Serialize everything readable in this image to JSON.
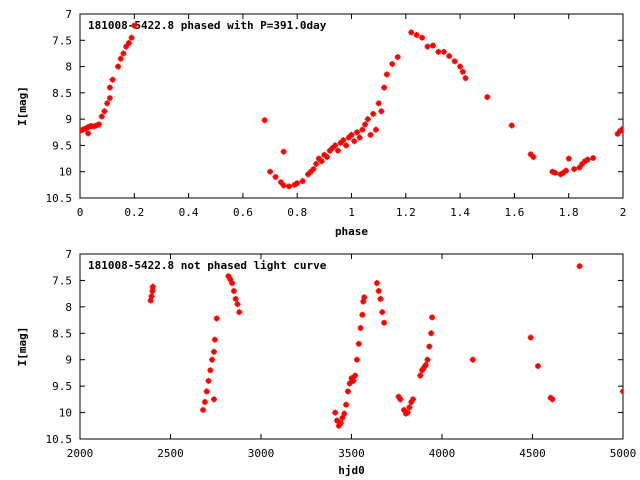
{
  "chart_data": [
    {
      "type": "scatter",
      "title": "181008-5422.8 phased with P=391.0day",
      "xlabel": "phase",
      "ylabel": "I[mag]",
      "xlim": [
        0,
        2
      ],
      "ylim": [
        10.5,
        7
      ],
      "y_inverted": true,
      "xticks": [
        "0",
        "0.2",
        "0.4",
        "0.6",
        "0.8",
        "1",
        "1.2",
        "1.4",
        "1.6",
        "1.8",
        "2"
      ],
      "yticks": [
        "7",
        "7.5",
        "8",
        "8.5",
        "9",
        "9.5",
        "10",
        "10.5"
      ],
      "marker_color": "#ff0000",
      "series": [
        {
          "points": [
            [
              0.0,
              9.22
            ],
            [
              0.01,
              9.2
            ],
            [
              0.02,
              9.18
            ],
            [
              0.03,
              9.27
            ],
            [
              0.03,
              9.15
            ],
            [
              0.04,
              9.13
            ],
            [
              0.05,
              9.14
            ],
            [
              0.06,
              9.12
            ],
            [
              0.07,
              9.1
            ],
            [
              0.08,
              8.95
            ],
            [
              0.09,
              8.85
            ],
            [
              0.1,
              8.7
            ],
            [
              0.11,
              8.6
            ],
            [
              0.11,
              8.4
            ],
            [
              0.12,
              8.25
            ],
            [
              0.14,
              8.0
            ],
            [
              0.15,
              7.85
            ],
            [
              0.16,
              7.75
            ],
            [
              0.17,
              7.62
            ],
            [
              0.18,
              7.55
            ],
            [
              0.19,
              7.45
            ],
            [
              0.2,
              7.22
            ],
            [
              0.68,
              9.02
            ],
            [
              0.7,
              10.0
            ],
            [
              0.72,
              10.1
            ],
            [
              0.74,
              10.2
            ],
            [
              0.75,
              10.26
            ],
            [
              0.75,
              9.62
            ],
            [
              0.77,
              10.28
            ],
            [
              0.79,
              10.25
            ],
            [
              0.8,
              10.22
            ],
            [
              0.82,
              10.18
            ],
            [
              0.84,
              10.05
            ],
            [
              0.85,
              10.0
            ],
            [
              0.86,
              9.95
            ],
            [
              0.87,
              9.85
            ],
            [
              0.88,
              9.75
            ],
            [
              0.89,
              9.8
            ],
            [
              0.9,
              9.68
            ],
            [
              0.91,
              9.72
            ],
            [
              0.92,
              9.6
            ],
            [
              0.93,
              9.55
            ],
            [
              0.94,
              9.5
            ],
            [
              0.95,
              9.6
            ],
            [
              0.96,
              9.45
            ],
            [
              0.97,
              9.4
            ],
            [
              0.98,
              9.5
            ],
            [
              0.99,
              9.35
            ],
            [
              1.0,
              9.3
            ],
            [
              1.01,
              9.42
            ],
            [
              1.02,
              9.25
            ],
            [
              1.03,
              9.35
            ],
            [
              1.04,
              9.2
            ],
            [
              1.05,
              9.1
            ],
            [
              1.06,
              9.0
            ],
            [
              1.07,
              9.3
            ],
            [
              1.08,
              8.9
            ],
            [
              1.09,
              9.2
            ],
            [
              1.1,
              8.7
            ],
            [
              1.11,
              8.85
            ],
            [
              1.12,
              8.4
            ],
            [
              1.13,
              8.15
            ],
            [
              1.15,
              7.95
            ],
            [
              1.17,
              7.82
            ],
            [
              1.22,
              7.35
            ],
            [
              1.24,
              7.4
            ],
            [
              1.26,
              7.45
            ],
            [
              1.28,
              7.62
            ],
            [
              1.3,
              7.6
            ],
            [
              1.32,
              7.72
            ],
            [
              1.34,
              7.72
            ],
            [
              1.36,
              7.8
            ],
            [
              1.38,
              7.9
            ],
            [
              1.4,
              8.0
            ],
            [
              1.41,
              8.1
            ],
            [
              1.42,
              8.22
            ],
            [
              1.5,
              8.58
            ],
            [
              1.59,
              9.12
            ],
            [
              1.66,
              9.67
            ],
            [
              1.67,
              9.72
            ],
            [
              1.74,
              10.0
            ],
            [
              1.75,
              10.02
            ],
            [
              1.77,
              10.05
            ],
            [
              1.78,
              10.02
            ],
            [
              1.79,
              9.98
            ],
            [
              1.8,
              9.75
            ],
            [
              1.82,
              9.95
            ],
            [
              1.84,
              9.92
            ],
            [
              1.85,
              9.85
            ],
            [
              1.86,
              9.8
            ],
            [
              1.87,
              9.77
            ],
            [
              1.89,
              9.74
            ],
            [
              1.98,
              9.28
            ],
            [
              1.99,
              9.22
            ],
            [
              2.0,
              9.18
            ]
          ]
        }
      ]
    },
    {
      "type": "scatter",
      "title": "181008-5422.8 not phased light curve",
      "xlabel": "hjd0",
      "ylabel": "I[mag]",
      "xlim": [
        2000,
        5000
      ],
      "ylim": [
        10.5,
        7
      ],
      "y_inverted": true,
      "xticks": [
        "2000",
        "2500",
        "3000",
        "3500",
        "4000",
        "4500",
        "5000"
      ],
      "yticks": [
        "7",
        "7.5",
        "8",
        "8.5",
        "9",
        "9.5",
        "10",
        "10.5"
      ],
      "marker_color": "#ff0000",
      "series": [
        {
          "points": [
            [
              2390,
              7.88
            ],
            [
              2395,
              7.8
            ],
            [
              2400,
              7.7
            ],
            [
              2402,
              7.62
            ],
            [
              2680,
              9.95
            ],
            [
              2690,
              9.8
            ],
            [
              2700,
              9.6
            ],
            [
              2710,
              9.4
            ],
            [
              2720,
              9.2
            ],
            [
              2730,
              9.0
            ],
            [
              2740,
              8.85
            ],
            [
              2745,
              8.62
            ],
            [
              2755,
              8.22
            ],
            [
              2740,
              9.75
            ],
            [
              2820,
              7.42
            ],
            [
              2830,
              7.48
            ],
            [
              2840,
              7.55
            ],
            [
              2850,
              7.7
            ],
            [
              2860,
              7.85
            ],
            [
              2870,
              7.95
            ],
            [
              2880,
              8.1
            ],
            [
              3410,
              10.0
            ],
            [
              3420,
              10.15
            ],
            [
              3430,
              10.25
            ],
            [
              3440,
              10.2
            ],
            [
              3450,
              10.1
            ],
            [
              3460,
              10.02
            ],
            [
              3470,
              9.85
            ],
            [
              3480,
              9.6
            ],
            [
              3490,
              9.45
            ],
            [
              3500,
              9.35
            ],
            [
              3510,
              9.4
            ],
            [
              3520,
              9.3
            ],
            [
              3530,
              9.0
            ],
            [
              3540,
              8.7
            ],
            [
              3550,
              8.4
            ],
            [
              3560,
              8.15
            ],
            [
              3565,
              7.9
            ],
            [
              3570,
              7.82
            ],
            [
              3640,
              7.55
            ],
            [
              3650,
              7.7
            ],
            [
              3660,
              7.85
            ],
            [
              3670,
              8.1
            ],
            [
              3680,
              8.3
            ],
            [
              3760,
              9.7
            ],
            [
              3770,
              9.75
            ],
            [
              3790,
              9.95
            ],
            [
              3800,
              10.02
            ],
            [
              3810,
              10.0
            ],
            [
              3820,
              9.9
            ],
            [
              3830,
              9.8
            ],
            [
              3840,
              9.75
            ],
            [
              3880,
              9.3
            ],
            [
              3890,
              9.2
            ],
            [
              3900,
              9.15
            ],
            [
              3910,
              9.1
            ],
            [
              3920,
              9.0
            ],
            [
              3930,
              8.75
            ],
            [
              3940,
              8.5
            ],
            [
              3945,
              8.2
            ],
            [
              4170,
              9.0
            ],
            [
              4490,
              8.58
            ],
            [
              4530,
              9.12
            ],
            [
              4600,
              9.72
            ],
            [
              4610,
              9.75
            ],
            [
              4760,
              7.23
            ],
            [
              5000,
              9.6
            ]
          ]
        }
      ]
    }
  ]
}
